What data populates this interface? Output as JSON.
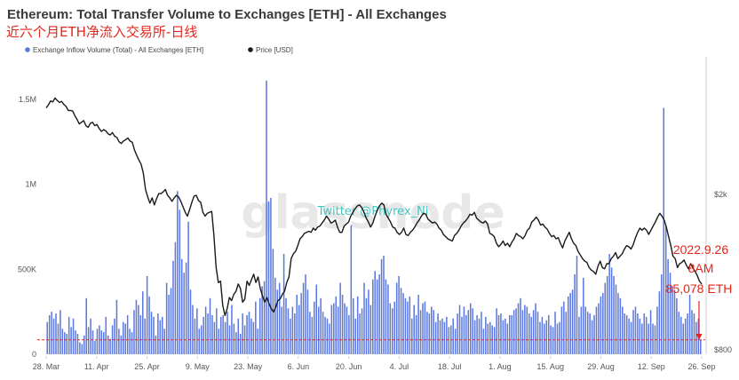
{
  "chart_data": {
    "type": "bar",
    "title": "Ethereum: Total Transfer Volume to Exchanges [ETH] - All Exchanges",
    "subtitle": "近六个月ETH净流入交易所-日线",
    "watermark": "glassnode",
    "credit": "Twitter @Phyrex_Ni",
    "x_ticks": [
      "28. Mar",
      "11. Apr",
      "25. Apr",
      "9. May",
      "23. May",
      "6. Jun",
      "20. Jun",
      "4. Jul",
      "18. Jul",
      "1. Aug",
      "15. Aug",
      "29. Aug",
      "12. Sep",
      "26. Sep"
    ],
    "x_start": "2022-03-28",
    "x_end": "2022-09-26",
    "y_left_ticks": [
      {
        "value": 0,
        "label": "0"
      },
      {
        "value": 500000,
        "label": "500K"
      },
      {
        "value": 1000000,
        "label": "1M"
      },
      {
        "value": 1500000,
        "label": "1.5M"
      }
    ],
    "ylim_left": [
      0,
      1750000
    ],
    "y_right_ticks": [
      {
        "value": 800,
        "label": "$800"
      },
      {
        "value": 2000,
        "label": "$2k"
      }
    ],
    "y_right_scale": "log",
    "ylim_right": [
      780,
      4500
    ],
    "grid": false,
    "legend_position": "top-left",
    "colors": {
      "bars": "#5b78e1",
      "price_line": "#1a1a1a",
      "reference_line": "#e3261c",
      "annotation": "#e3261c"
    },
    "series": [
      {
        "name": "Exchange Inflow Volume (Total) - All Exchanges [ETH]",
        "type": "bar",
        "values": [
          190000,
          230000,
          250000,
          210000,
          240000,
          180000,
          260000,
          150000,
          130000,
          120000,
          220000,
          160000,
          210000,
          140000,
          120000,
          70000,
          60000,
          110000,
          330000,
          160000,
          210000,
          140000,
          80000,
          150000,
          170000,
          140000,
          130000,
          220000,
          110000,
          90000,
          170000,
          210000,
          320000,
          150000,
          110000,
          190000,
          180000,
          230000,
          150000,
          130000,
          260000,
          320000,
          290000,
          230000,
          370000,
          210000,
          460000,
          340000,
          250000,
          220000,
          110000,
          240000,
          200000,
          220000,
          150000,
          420000,
          350000,
          390000,
          550000,
          660000,
          960000,
          850000,
          560000,
          480000,
          540000,
          780000,
          380000,
          290000,
          210000,
          270000,
          150000,
          170000,
          220000,
          280000,
          240000,
          330000,
          230000,
          190000,
          270000,
          150000,
          220000,
          230000,
          190000,
          250000,
          170000,
          290000,
          180000,
          130000,
          210000,
          120000,
          240000,
          170000,
          230000,
          250000,
          210000,
          190000,
          310000,
          150000,
          330000,
          400000,
          430000,
          1610000,
          900000,
          920000,
          620000,
          450000,
          380000,
          420000,
          280000,
          590000,
          330000,
          270000,
          210000,
          280000,
          240000,
          350000,
          290000,
          360000,
          420000,
          470000,
          380000,
          250000,
          220000,
          310000,
          410000,
          280000,
          330000,
          250000,
          220000,
          210000,
          180000,
          290000,
          300000,
          340000,
          280000,
          420000,
          350000,
          300000,
          280000,
          230000,
          760000,
          330000,
          210000,
          340000,
          240000,
          270000,
          420000,
          330000,
          380000,
          290000,
          440000,
          490000,
          440000,
          470000,
          560000,
          580000,
          440000,
          410000,
          300000,
          270000,
          310000,
          420000,
          460000,
          390000,
          360000,
          330000,
          310000,
          340000,
          210000,
          290000,
          230000,
          350000,
          260000,
          300000,
          310000,
          250000,
          240000,
          280000,
          260000,
          190000,
          240000,
          200000,
          210000,
          190000,
          220000,
          160000,
          170000,
          210000,
          150000,
          240000,
          290000,
          220000,
          280000,
          230000,
          260000,
          300000,
          270000,
          200000,
          230000,
          210000,
          250000,
          150000,
          220000,
          180000,
          190000,
          170000,
          160000,
          270000,
          230000,
          240000,
          200000,
          210000,
          180000,
          230000,
          230000,
          260000,
          270000,
          300000,
          330000,
          260000,
          290000,
          280000,
          240000,
          220000,
          260000,
          300000,
          250000,
          190000,
          220000,
          180000,
          200000,
          230000,
          170000,
          160000,
          250000,
          180000,
          190000,
          280000,
          310000,
          250000,
          340000,
          360000,
          380000,
          470000,
          580000,
          220000,
          280000,
          450000,
          280000,
          250000,
          240000,
          200000,
          230000,
          280000,
          300000,
          340000,
          360000,
          420000,
          460000,
          590000,
          510000,
          460000,
          410000,
          360000,
          330000,
          280000,
          240000,
          230000,
          210000,
          190000,
          260000,
          280000,
          240000,
          210000,
          180000,
          240000,
          220000,
          180000,
          260000,
          180000,
          170000,
          280000,
          370000,
          470000,
          1450000,
          760000,
          560000,
          480000,
          400000,
          380000,
          330000,
          250000,
          220000,
          180000,
          210000,
          240000,
          350000,
          260000,
          240000,
          190000,
          210000,
          85078
        ]
      },
      {
        "name": "Price [USD]",
        "type": "line",
        "axis": "right",
        "values": [
          3330,
          3390,
          3470,
          3450,
          3530,
          3480,
          3440,
          3460,
          3400,
          3360,
          3280,
          3280,
          3270,
          3180,
          3110,
          3030,
          3060,
          3090,
          3000,
          2970,
          3040,
          3060,
          3000,
          3020,
          2950,
          2900,
          2930,
          2910,
          2860,
          2840,
          2880,
          2820,
          2800,
          2730,
          2700,
          2740,
          2760,
          2790,
          2740,
          2720,
          2600,
          2520,
          2450,
          2390,
          2270,
          2060,
          1970,
          1900,
          1960,
          1880,
          1950,
          2010,
          2010,
          2030,
          2060,
          1990,
          1960,
          1920,
          1960,
          1990,
          1970,
          1920,
          1860,
          1800,
          1760,
          1830,
          1910,
          1980,
          1990,
          1930,
          1910,
          1800,
          1760,
          1790,
          1800,
          1810,
          1570,
          1300,
          1190,
          1200,
          1040,
          980,
          1020,
          1090,
          1070,
          1110,
          1130,
          1180,
          1150,
          1060,
          1080,
          1200,
          1170,
          1210,
          1250,
          1190,
          1230,
          1150,
          1100,
          1060,
          1090,
          1050,
          1020,
          1000,
          1030,
          1070,
          1080,
          1110,
          1130,
          1190,
          1230,
          1370,
          1410,
          1430,
          1480,
          1540,
          1560,
          1590,
          1600,
          1610,
          1600,
          1640,
          1620,
          1650,
          1660,
          1690,
          1720,
          1760,
          1730,
          1690,
          1700,
          1720,
          1650,
          1600,
          1600,
          1660,
          1680,
          1700,
          1760,
          1800,
          1840,
          1870,
          1880,
          1850,
          1800,
          1740,
          1700,
          1650,
          1690,
          1760,
          1820,
          1870,
          1900,
          1880,
          1780,
          1740,
          1700,
          1650,
          1640,
          1600,
          1580,
          1600,
          1640,
          1580,
          1570,
          1600,
          1620,
          1650,
          1690,
          1720,
          1760,
          1790,
          1780,
          1730,
          1710,
          1690,
          1700,
          1680,
          1640,
          1620,
          1580,
          1560,
          1540,
          1530,
          1520,
          1570,
          1590,
          1620,
          1660,
          1690,
          1710,
          1740,
          1780,
          1770,
          1800,
          1740,
          1720,
          1700,
          1690,
          1710,
          1680,
          1590,
          1580,
          1560,
          1500,
          1470,
          1490,
          1520,
          1480,
          1500,
          1470,
          1510,
          1540,
          1590,
          1570,
          1560,
          1540,
          1570,
          1620,
          1640,
          1700,
          1720,
          1750,
          1720,
          1670,
          1680,
          1650,
          1630,
          1590,
          1560,
          1570,
          1540,
          1550,
          1500,
          1460,
          1520,
          1560,
          1600,
          1540,
          1500,
          1480,
          1430,
          1400,
          1370,
          1350,
          1340,
          1300,
          1280,
          1270,
          1250,
          1310,
          1350,
          1300,
          1290,
          1330,
          1330,
          1370,
          1390,
          1420,
          1370,
          1390,
          1410,
          1450,
          1480,
          1470,
          1450,
          1490,
          1550,
          1600,
          1640,
          1620,
          1640,
          1620,
          1580,
          1620,
          1660,
          1700,
          1750,
          1790,
          1760,
          1720,
          1650,
          1560,
          1480,
          1390,
          1370,
          1300,
          1330,
          1340,
          1360,
          1320,
          1290,
          1330,
          1300,
          1270,
          1240,
          1200,
          1180
        ]
      },
      {
        "name": "",
        "type": "reference-line",
        "value": 85078
      }
    ],
    "annotation": {
      "lines": [
        "2022.9.26",
        "8AM",
        "85,078 ETH"
      ]
    }
  }
}
